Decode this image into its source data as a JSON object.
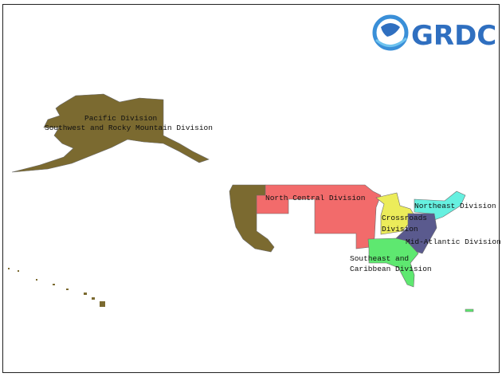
{
  "logo": {
    "text": "GRDC",
    "color": "#2f6fc0"
  },
  "regions": [
    {
      "name": "Pacific Division",
      "color": "#7b6a30"
    },
    {
      "name": "Southwest and Rocky Mountain Division",
      "color": "#7b6a30"
    },
    {
      "name": "North Central Division",
      "color": "#f26b6b"
    },
    {
      "name": "Crossroads Division",
      "color": "#ecec5a"
    },
    {
      "name": "Northeast Division",
      "color": "#66f0e0"
    },
    {
      "name": "Mid-Atlantic Division",
      "color": "#5a5a8e"
    },
    {
      "name": "Southeast and Caribbean Division",
      "color": "#5ee870"
    }
  ],
  "labels": {
    "pacific": "Pacific Division",
    "southwest": "Southwest and Rocky Mountain Division",
    "north_central": "North Central Division",
    "crossroads_1": "Crossroads",
    "crossroads_2": "Division",
    "northeast": "Northeast Division",
    "mid_atlantic": "Mid-Atlantic Division",
    "southeast_1": "Southeast and",
    "southeast_2": "Caribbean Division"
  }
}
